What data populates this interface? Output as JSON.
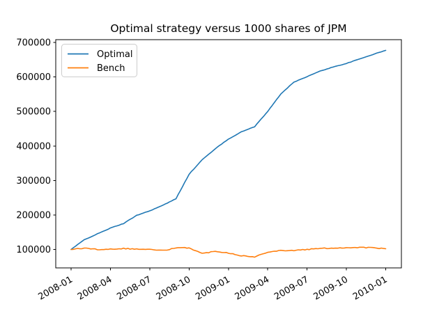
{
  "window": {
    "background": "#ffffff"
  },
  "chart_data": {
    "type": "line",
    "title": "Optimal strategy versus 1000 shares of JPM",
    "xlabel": "",
    "ylabel": "",
    "grid": false,
    "legend_position": "upper left",
    "x": [
      "2008-01",
      "2008-02",
      "2008-03",
      "2008-04",
      "2008-05",
      "2008-06",
      "2008-07",
      "2008-08",
      "2008-09",
      "2008-10",
      "2008-11",
      "2008-12",
      "2009-01",
      "2009-02",
      "2009-03",
      "2009-04",
      "2009-05",
      "2009-06",
      "2009-07",
      "2009-08",
      "2009-09",
      "2009-10",
      "2009-11",
      "2009-12",
      "2010-01"
    ],
    "x_tick_labels": [
      "2008-01",
      "2008-04",
      "2008-07",
      "2008-10",
      "2009-01",
      "2009-04",
      "2009-07",
      "2009-10",
      "2010-01"
    ],
    "y_ticks": [
      100000,
      200000,
      300000,
      400000,
      500000,
      600000,
      700000
    ],
    "y_tick_labels": [
      "100000",
      "200000",
      "300000",
      "400000",
      "500000",
      "600000",
      "700000"
    ],
    "ylim": [
      47000,
      710000
    ],
    "series": [
      {
        "name": "Optimal",
        "color": "#1f77b4",
        "values": [
          100000,
          128000,
          145000,
          162000,
          175000,
          199000,
          212000,
          228000,
          247000,
          318000,
          360000,
          392000,
          420000,
          441000,
          456000,
          500000,
          551000,
          585000,
          601000,
          617000,
          629000,
          639000,
          652000,
          665000,
          677000
        ]
      },
      {
        "name": "Bench",
        "color": "#ff7f0e",
        "values": [
          100000,
          104000,
          100000,
          101000,
          103000,
          101000,
          100000,
          97000,
          104000,
          105000,
          88000,
          95000,
          90000,
          82000,
          78000,
          93000,
          97000,
          97000,
          100000,
          103000,
          104000,
          105000,
          106000,
          105000,
          102000
        ]
      }
    ]
  }
}
